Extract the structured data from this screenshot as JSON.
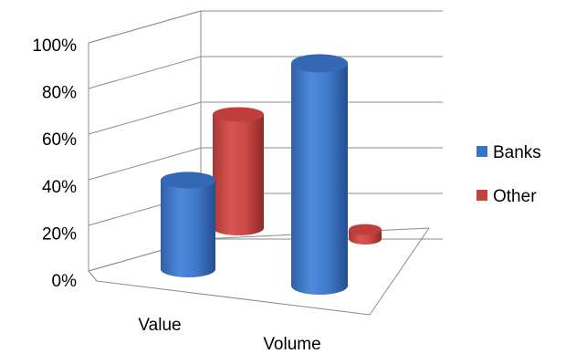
{
  "chart_data": {
    "type": "bar",
    "style": "3d-cylinder",
    "categories": [
      "Value",
      "Volume"
    ],
    "series": [
      {
        "name": "Banks",
        "values": [
          40,
          93
        ],
        "color": "#3c74c4"
      },
      {
        "name": "Other",
        "values": [
          72,
          2
        ],
        "color": "#c24442"
      }
    ],
    "ylim": [
      0,
      100
    ],
    "yticks": [
      "0%",
      "20%",
      "40%",
      "60%",
      "80%",
      "100%"
    ],
    "grid": true,
    "legend_position": "right"
  }
}
